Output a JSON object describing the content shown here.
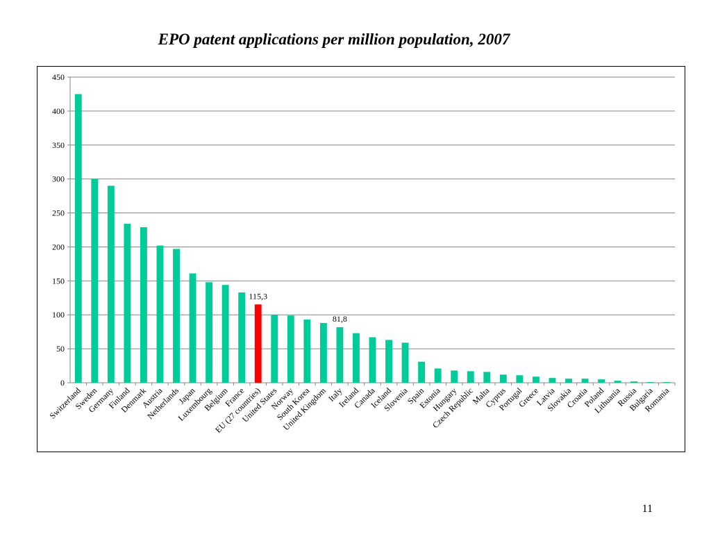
{
  "slide": {
    "title": "EPO patent applications per million population, 2007",
    "page_number": "11"
  },
  "chart_data": {
    "type": "bar",
    "title": "",
    "xlabel": "",
    "ylabel": "",
    "ylim": [
      0,
      450
    ],
    "yticks": [
      0,
      50,
      100,
      150,
      200,
      250,
      300,
      350,
      400,
      450
    ],
    "grid": true,
    "legend": "none",
    "bar_color": "#00CC99",
    "highlight_color": "#FF0000",
    "highlight_category": "EU (27 countries)",
    "categories": [
      "Switzerland",
      "Sweden",
      "Germany",
      "Finland",
      "Denmark",
      "Austria",
      "Netherlands",
      "Japan",
      "Luxembourg",
      "Belgium",
      "France",
      "EU (27 countries)",
      "United States",
      "Norway",
      "South Korea",
      "United Kingdom",
      "Italy",
      "Ireland",
      "Canada",
      "Iceland",
      "Slovenia",
      "Spain",
      "Estonia",
      "Hungary",
      "Czech Republic",
      "Malta",
      "Cyprus",
      "Portugal",
      "Greece",
      "Latvia",
      "Slovakia",
      "Croatia",
      "Poland",
      "Lithuania",
      "Russia",
      "Bulgaria",
      "Romania"
    ],
    "values": [
      425,
      300,
      290,
      234,
      229,
      202,
      197,
      161,
      148,
      144,
      133,
      115.3,
      100,
      99,
      93,
      88,
      81.8,
      73,
      67,
      63,
      59,
      31,
      21,
      18,
      17,
      16,
      12,
      11,
      9,
      7,
      6,
      6,
      5,
      3,
      2,
      1,
      1
    ],
    "data_labels": [
      {
        "category": "EU (27 countries)",
        "text": "115,3"
      },
      {
        "category": "Italy",
        "text": "81,8"
      }
    ]
  }
}
